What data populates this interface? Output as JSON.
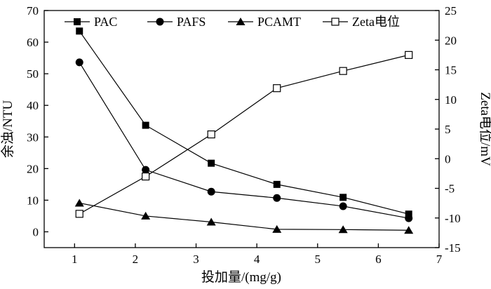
{
  "chart_data": {
    "type": "line",
    "xlabel": "投加量/(mg/g)",
    "ylabel_left": "余浊/NTU",
    "ylabel_right": "Zeta电位/mV",
    "xlim": [
      0.5,
      7
    ],
    "ylim_left": [
      -5,
      70
    ],
    "ylim_right": [
      -15,
      25
    ],
    "xticks": [
      1,
      2,
      3,
      4,
      5,
      6,
      7
    ],
    "yticks_left": [
      0,
      10,
      20,
      30,
      40,
      50,
      60,
      70
    ],
    "yticks_right": [
      -15,
      -10,
      -5,
      0,
      5,
      10,
      15,
      20,
      25
    ],
    "x": [
      1.08,
      2.17,
      3.25,
      4.33,
      5.42,
      6.5
    ],
    "series": [
      {
        "name": "PAC",
        "axis": "left",
        "marker": "square-filled",
        "values": [
          63.5,
          33.7,
          21.7,
          15.0,
          10.9,
          5.6
        ]
      },
      {
        "name": "PAFS",
        "axis": "left",
        "marker": "circle-filled",
        "values": [
          53.6,
          19.6,
          12.7,
          10.7,
          8.1,
          4.3
        ]
      },
      {
        "name": "PCAMT",
        "axis": "left",
        "marker": "triangle-filled",
        "values": [
          9.1,
          5.0,
          3.1,
          0.8,
          0.7,
          0.5
        ]
      },
      {
        "name": "Zeta电位",
        "axis": "right",
        "marker": "square-open",
        "values": [
          -9.3,
          -3.0,
          4.1,
          11.9,
          14.8,
          17.5
        ]
      }
    ],
    "legend_position": "top",
    "grid": false
  }
}
